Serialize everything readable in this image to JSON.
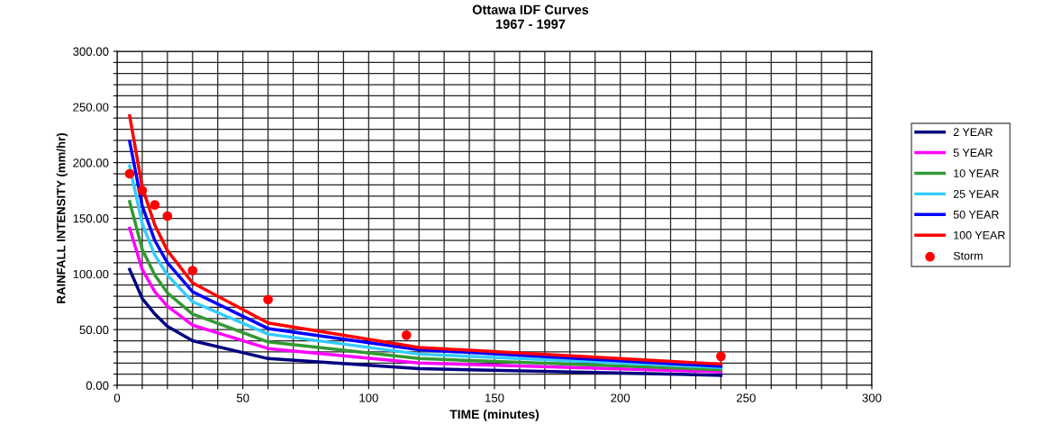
{
  "chart_data": {
    "type": "line",
    "title": "Ottawa IDF Curves",
    "subtitle": "1967 - 1997",
    "xlabel": "TIME (minutes)",
    "ylabel": "RAINFALL INTENSITY (mm/hr)",
    "x": [
      5,
      10,
      15,
      20,
      30,
      60,
      120,
      240
    ],
    "series": [
      {
        "name": "2 YEAR",
        "color": "#000080",
        "values": [
          104,
          78,
          64,
          53,
          40,
          24,
          15,
          9
        ]
      },
      {
        "name": "5 YEAR",
        "color": "#ff00ff",
        "values": [
          141,
          104,
          84,
          71,
          54,
          33,
          20,
          12
        ]
      },
      {
        "name": "10 YEAR",
        "color": "#339933",
        "values": [
          165,
          122,
          99,
          83,
          64,
          39,
          24,
          14
        ]
      },
      {
        "name": "25 YEAR",
        "color": "#33ccff",
        "values": [
          197,
          145,
          117,
          99,
          75,
          46,
          28,
          16
        ]
      },
      {
        "name": "50 YEAR",
        "color": "#0000ff",
        "values": [
          219,
          161,
          130,
          110,
          84,
          51,
          32,
          17
        ]
      },
      {
        "name": "100 YEAR",
        "color": "#ff0000",
        "values": [
          242,
          178,
          144,
          121,
          92,
          56,
          34,
          19
        ]
      },
      {
        "name": "Storm",
        "type": "scatter",
        "color": "#ff0000",
        "marker": "circle",
        "x": [
          5,
          10,
          15,
          20,
          30,
          60,
          115,
          240
        ],
        "values": [
          190,
          175,
          162,
          152,
          103,
          77,
          45,
          26
        ]
      }
    ],
    "xlim": [
      0,
      300
    ],
    "ylim": [
      0,
      300
    ],
    "xticks": [
      0,
      {
        "value": 10,
        "label": null
      },
      {
        "value": 20,
        "label": null
      },
      {
        "value": 30,
        "label": null
      },
      {
        "value": 40,
        "label": null
      },
      50,
      {
        "value": 60,
        "label": null
      },
      {
        "value": 70,
        "label": null
      },
      {
        "value": 80,
        "label": null
      },
      {
        "value": 90,
        "label": null
      },
      100,
      {
        "value": 110,
        "label": null
      },
      {
        "value": 120,
        "label": null
      },
      {
        "value": 130,
        "label": null
      },
      {
        "value": 140,
        "label": null
      },
      150,
      {
        "value": 160,
        "label": null
      },
      {
        "value": 170,
        "label": null
      },
      {
        "value": 180,
        "label": null
      },
      {
        "value": 190,
        "label": null
      },
      200,
      {
        "value": 210,
        "label": null
      },
      {
        "value": 220,
        "label": null
      },
      {
        "value": 230,
        "label": null
      },
      {
        "value": 240,
        "label": null
      },
      250,
      {
        "value": 260,
        "label": null
      },
      {
        "value": 270,
        "label": null
      },
      {
        "value": 280,
        "label": null
      },
      {
        "value": 290,
        "label": null
      },
      300
    ],
    "yticks": [
      {
        "value": 0,
        "label": "0.00"
      },
      {
        "value": 10,
        "label": null
      },
      {
        "value": 20,
        "label": null
      },
      {
        "value": 30,
        "label": null
      },
      {
        "value": 40,
        "label": null
      },
      {
        "value": 50,
        "label": "50.00"
      },
      {
        "value": 60,
        "label": null
      },
      {
        "value": 70,
        "label": null
      },
      {
        "value": 80,
        "label": null
      },
      {
        "value": 90,
        "label": null
      },
      {
        "value": 100,
        "label": "100.00"
      },
      {
        "value": 110,
        "label": null
      },
      {
        "value": 120,
        "label": null
      },
      {
        "value": 130,
        "label": null
      },
      {
        "value": 140,
        "label": null
      },
      {
        "value": 150,
        "label": "150.00"
      },
      {
        "value": 160,
        "label": null
      },
      {
        "value": 170,
        "label": null
      },
      {
        "value": 180,
        "label": null
      },
      {
        "value": 190,
        "label": null
      },
      {
        "value": 200,
        "label": "200.00"
      },
      {
        "value": 210,
        "label": null
      },
      {
        "value": 220,
        "label": null
      },
      {
        "value": 230,
        "label": null
      },
      {
        "value": 240,
        "label": null
      },
      {
        "value": 250,
        "label": "250.00"
      },
      {
        "value": 260,
        "label": null
      },
      {
        "value": 270,
        "label": null
      },
      {
        "value": 280,
        "label": null
      },
      {
        "value": 290,
        "label": null
      },
      {
        "value": 300,
        "label": "300.00"
      }
    ],
    "grid": true,
    "legend": "right",
    "marker": "none",
    "line_style": "solid"
  }
}
